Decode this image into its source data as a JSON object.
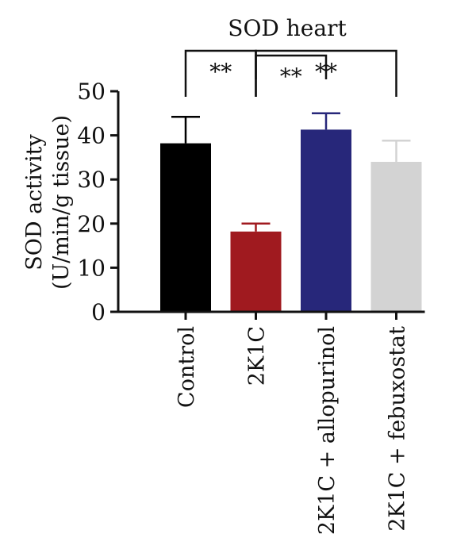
{
  "chart_data": {
    "type": "bar",
    "title": "SOD heart",
    "ylabel_line1": "SOD activity",
    "ylabel_line2": "(U/min/g tissue)",
    "ylim": [
      0,
      50
    ],
    "yticks": [
      0,
      10,
      20,
      30,
      40,
      50
    ],
    "categories": [
      "Control",
      "2K1C",
      "2K1C + allopurinol",
      "2K1C + febuxostat"
    ],
    "values": [
      38.2,
      18.2,
      41.3,
      34.0
    ],
    "errors": [
      6.0,
      1.8,
      3.7,
      4.8
    ],
    "colors": [
      "#000000",
      "#a01a1f",
      "#27277a",
      "#d3d3d3"
    ],
    "significance": [
      {
        "from": 0,
        "to": 1,
        "label": "**"
      },
      {
        "from": 1,
        "to": 2,
        "label": "**"
      },
      {
        "from": 1,
        "to": 3,
        "label": "**"
      }
    ]
  }
}
